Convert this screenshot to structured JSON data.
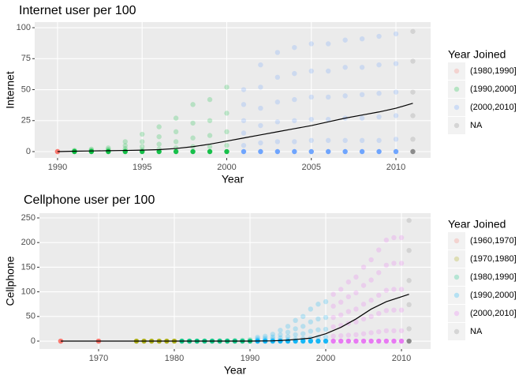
{
  "chart_data": [
    {
      "type": "scatter",
      "title": "Internet user per 100",
      "x_label": "Year",
      "y_label": "Internet",
      "xlim": [
        1988.65,
        2012.05
      ],
      "xticks": [
        1990,
        1995,
        2000,
        2005,
        2010
      ],
      "ylim": [
        -5.1,
        104.5
      ],
      "yticks": [
        0,
        25,
        50,
        75,
        100
      ],
      "grid": true,
      "legend_title": "Year Joined",
      "legend_position": "right",
      "series": [
        {
          "name": "(1980,1990]",
          "color": "#F8766D",
          "points": [
            {
              "x": 1990,
              "values": [
                0,
                0
              ]
            }
          ]
        },
        {
          "name": "(1990,2000]",
          "color": "#00BA38",
          "points": [
            {
              "x": 1991,
              "values": [
                0,
                0.1,
                0.3,
                0.6,
                1
              ]
            },
            {
              "x": 1992,
              "values": [
                0,
                0.2,
                0.6,
                1.2,
                2
              ]
            },
            {
              "x": 1993,
              "values": [
                0,
                0.3,
                0.9,
                1.8,
                3
              ]
            },
            {
              "x": 1994,
              "values": [
                0,
                0.8,
                2.4,
                4.8,
                8
              ]
            },
            {
              "x": 1995,
              "values": [
                0,
                1.4,
                4,
                8,
                14
              ]
            },
            {
              "x": 1996,
              "values": [
                0,
                2,
                6,
                12,
                20
              ]
            },
            {
              "x": 1997,
              "values": [
                0,
                3,
                8,
                16,
                27
              ]
            },
            {
              "x": 1998,
              "values": [
                0,
                4,
                11,
                23,
                38
              ]
            },
            {
              "x": 1999,
              "values": [
                0,
                4,
                13,
                25,
                42
              ]
            },
            {
              "x": 2000,
              "values": [
                0,
                5,
                16,
                31,
                52
              ]
            }
          ]
        },
        {
          "name": "(2000,2010]",
          "color": "#619CFF",
          "points": [
            {
              "x": 2001,
              "values": [
                0,
                5,
                15,
                25,
                38,
                50
              ]
            },
            {
              "x": 2002,
              "values": [
                0,
                7,
                21,
                35,
                52,
                70
              ]
            },
            {
              "x": 2003,
              "values": [
                0,
                8,
                24,
                40,
                60,
                80
              ]
            },
            {
              "x": 2004,
              "values": [
                0,
                8,
                25,
                42,
                63,
                84
              ]
            },
            {
              "x": 2005,
              "values": [
                0,
                9,
                26,
                44,
                65,
                87
              ]
            },
            {
              "x": 2006,
              "values": [
                0,
                9,
                26,
                44,
                65,
                87
              ]
            },
            {
              "x": 2007,
              "values": [
                0,
                9,
                27,
                45,
                68,
                90
              ]
            },
            {
              "x": 2008,
              "values": [
                0,
                9,
                27,
                46,
                68,
                91
              ]
            },
            {
              "x": 2009,
              "values": [
                0,
                9,
                28,
                47,
                70,
                93
              ]
            },
            {
              "x": 2010,
              "values": [
                0,
                10,
                29,
                48,
                71,
                95
              ]
            }
          ]
        },
        {
          "name": "NA",
          "color": "#7F7F7F",
          "points": [
            {
              "x": 2011,
              "values": [
                0,
                10,
                29,
                48,
                73,
                97
              ]
            }
          ]
        }
      ],
      "smooth": {
        "color": "#000000",
        "x": [
          1990,
          1991,
          1992,
          1993,
          1994,
          1995,
          1996,
          1997,
          1998,
          1999,
          2000,
          2001,
          2002,
          2003,
          2004,
          2005,
          2006,
          2007,
          2008,
          2009,
          2010,
          2011
        ],
        "values": [
          0,
          0.3,
          0.5,
          0.7,
          0.9,
          1.2,
          1.6,
          2.5,
          4,
          6,
          8.5,
          11,
          13.5,
          16,
          18.5,
          21,
          24,
          27,
          29.5,
          32,
          35,
          39
        ]
      }
    },
    {
      "type": "scatter",
      "title": "Cellphone user per 100",
      "x_label": "Year",
      "y_label": "Cellphone",
      "xlim": [
        1962.19,
        2013.85
      ],
      "xticks": [
        1970,
        1980,
        1990,
        2000,
        2010
      ],
      "ylim": [
        -16,
        259.6
      ],
      "yticks": [
        0,
        50,
        100,
        150,
        200,
        250
      ],
      "grid": true,
      "legend_title": "Year Joined",
      "legend_position": "right",
      "series": [
        {
          "name": "(1960,1970]",
          "color": "#F8766D",
          "points": [
            {
              "x": 1965,
              "values": [
                0,
                0
              ]
            },
            {
              "x": 1970,
              "values": [
                0,
                0
              ]
            }
          ]
        },
        {
          "name": "(1970,1980]",
          "color": "#A3A500",
          "points": [
            {
              "x": 1975,
              "values": [
                0
              ]
            },
            {
              "x": 1976,
              "values": [
                0
              ]
            },
            {
              "x": 1977,
              "values": [
                0
              ]
            },
            {
              "x": 1978,
              "values": [
                0
              ]
            },
            {
              "x": 1979,
              "values": [
                0
              ]
            },
            {
              "x": 1980,
              "values": [
                0
              ]
            }
          ]
        },
        {
          "name": "(1980,1990]",
          "color": "#00BF7D",
          "points": [
            {
              "x": 1981,
              "values": [
                0,
                0.2
              ]
            },
            {
              "x": 1982,
              "values": [
                0,
                0.2
              ]
            },
            {
              "x": 1983,
              "values": [
                0,
                0.3
              ]
            },
            {
              "x": 1984,
              "values": [
                0,
                0.4
              ]
            },
            {
              "x": 1985,
              "values": [
                0,
                0.5
              ]
            },
            {
              "x": 1986,
              "values": [
                0,
                0.8
              ]
            },
            {
              "x": 1987,
              "values": [
                0,
                1
              ]
            },
            {
              "x": 1988,
              "values": [
                0,
                1.5
              ]
            },
            {
              "x": 1989,
              "values": [
                0,
                2
              ]
            },
            {
              "x": 1990,
              "values": [
                0,
                1,
                3
              ]
            }
          ]
        },
        {
          "name": "(1990,2000]",
          "color": "#00B0F6",
          "points": [
            {
              "x": 1991,
              "values": [
                0,
                0.8,
                2.4,
                4.8,
                8
              ]
            },
            {
              "x": 1992,
              "values": [
                0,
                1,
                3,
                6,
                10
              ]
            },
            {
              "x": 1993,
              "values": [
                0,
                1.4,
                4.2,
                8.4,
                14
              ]
            },
            {
              "x": 1994,
              "values": [
                0,
                2.2,
                6.6,
                13,
                22
              ]
            },
            {
              "x": 1995,
              "values": [
                0,
                3,
                9,
                18,
                30
              ]
            },
            {
              "x": 1996,
              "values": [
                0,
                4,
                13,
                25,
                42
              ]
            },
            {
              "x": 1997,
              "values": [
                0,
                5,
                15,
                30,
                50
              ]
            },
            {
              "x": 1998,
              "values": [
                0,
                6,
                20,
                39,
                65
              ]
            },
            {
              "x": 1999,
              "values": [
                0,
                8,
                23,
                45,
                75
              ]
            },
            {
              "x": 2000,
              "values": [
                0,
                8,
                24,
                48,
                80
              ]
            }
          ]
        },
        {
          "name": "(2000,2010]",
          "color": "#E76BF3",
          "points": [
            {
              "x": 2001,
              "values": [
                0,
                10,
                29,
                48,
                71,
                95
              ]
            },
            {
              "x": 2002,
              "values": [
                0,
                11,
                32,
                53,
                79,
                105
              ]
            },
            {
              "x": 2003,
              "values": [
                0,
                12,
                36,
                60,
                90,
                120
              ]
            },
            {
              "x": 2004,
              "values": [
                0,
                13,
                39,
                65,
                98,
                130
              ]
            },
            {
              "x": 2005,
              "values": [
                0,
                15,
                45,
                75,
                113,
                150
              ]
            },
            {
              "x": 2006,
              "values": [
                0,
                17,
                50,
                83,
                124,
                165
              ]
            },
            {
              "x": 2007,
              "values": [
                0,
                19,
                56,
                93,
                139,
                185
              ]
            },
            {
              "x": 2008,
              "values": [
                0,
                21,
                62,
                103,
                154,
                205
              ]
            },
            {
              "x": 2009,
              "values": [
                0,
                21,
                63,
                105,
                158,
                210
              ]
            },
            {
              "x": 2010,
              "values": [
                0,
                21,
                63,
                105,
                158,
                210
              ]
            }
          ]
        },
        {
          "name": "NA",
          "color": "#7F7F7F",
          "points": [
            {
              "x": 2011,
              "values": [
                0,
                25,
                74,
                123,
                184,
                245
              ]
            }
          ]
        }
      ],
      "smooth": {
        "color": "#000000",
        "x": [
          1965,
          1970,
          1975,
          1980,
          1985,
          1990,
          1993,
          1995,
          1998,
          2000,
          2002,
          2004,
          2006,
          2008,
          2010,
          2011
        ],
        "values": [
          0,
          0,
          0,
          0,
          0,
          0,
          0.5,
          2,
          6,
          15,
          28,
          45,
          65,
          80,
          90,
          95
        ]
      }
    }
  ]
}
